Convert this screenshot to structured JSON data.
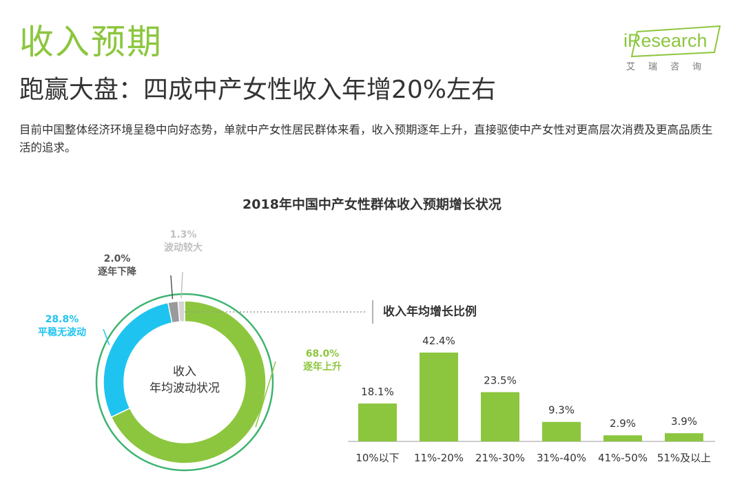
{
  "header": {
    "title": "收入预期",
    "subtitle": "跑赢大盘：四成中产女性收入年增20%左右",
    "description": "目前中国整体经济环境呈稳中向好态势，单就中产女性居民群体来看，收入预期逐年上升，直接驱使中产女性对更高层次消费及更高品质生活的追求。"
  },
  "logo": {
    "brand": "iResearch",
    "tagline": "艾瑞咨询"
  },
  "colors": {
    "accent": "#8cc63e",
    "donut_green": "#8cc63e",
    "donut_blue": "#1ec4ef",
    "donut_gray": "#9a9a9a",
    "donut_light": "#d4d4d4"
  },
  "chart_data": [
    {
      "type": "pie",
      "title": "2018年中国中产女性群体收入预期增长状况",
      "center_label": [
        "收入",
        "年均波动状况"
      ],
      "slices": [
        {
          "label": "逐年上升",
          "value": 68.0,
          "display": "68.0%",
          "color": "#8cc63e"
        },
        {
          "label": "平稳无波动",
          "value": 28.8,
          "display": "28.8%",
          "color": "#1ec4ef"
        },
        {
          "label": "逐年下降",
          "value": 2.0,
          "display": "2.0%",
          "color": "#9a9a9a"
        },
        {
          "label": "波动较大",
          "value": 1.3,
          "display": "1.3%",
          "color": "#d4d4d4"
        }
      ]
    },
    {
      "type": "bar",
      "title": "收入年均增长比例",
      "categories": [
        "10%以下",
        "11%-20%",
        "21%-30%",
        "31%-40%",
        "41%-50%",
        "51%及以上"
      ],
      "values": [
        18.1,
        42.4,
        23.5,
        9.3,
        2.9,
        3.9
      ],
      "value_labels": [
        "18.1%",
        "42.4%",
        "23.5%",
        "9.3%",
        "2.9%",
        "3.9%"
      ],
      "color": "#8cc63e"
    }
  ]
}
